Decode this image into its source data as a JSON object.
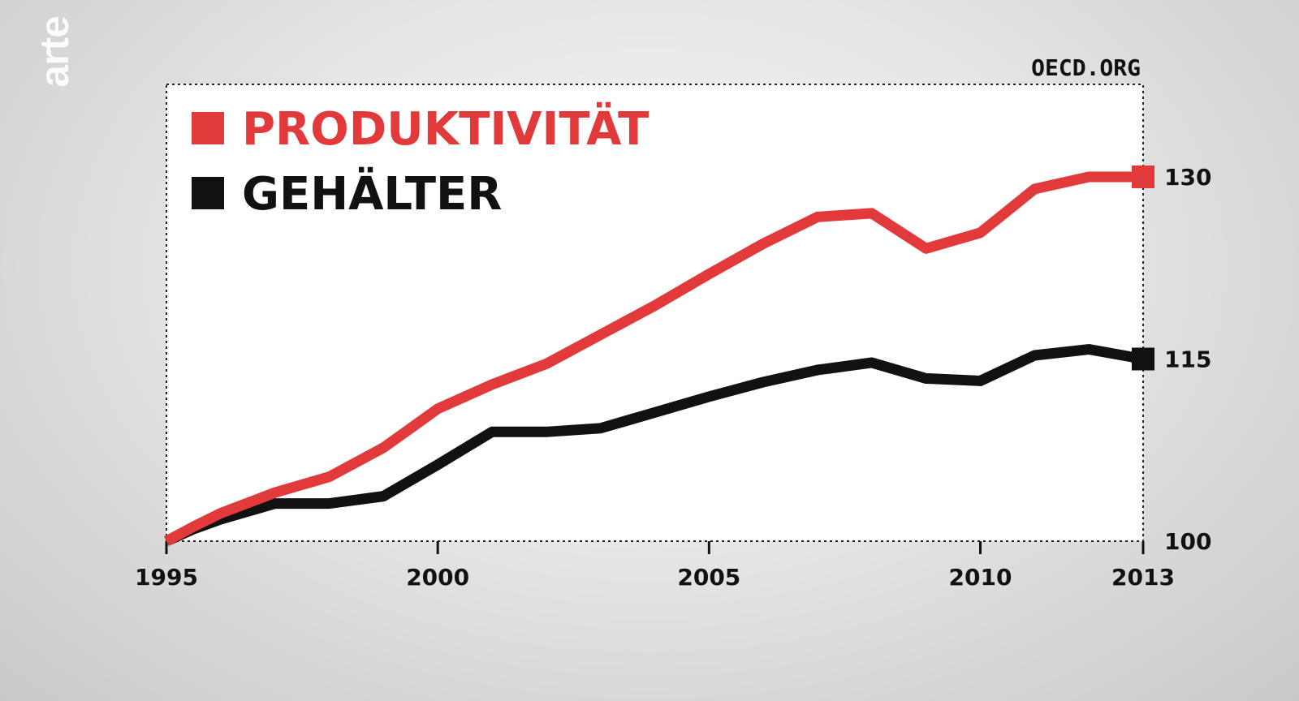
{
  "logo": {
    "text": "arte"
  },
  "source": "OECD.ORG",
  "chart_data": {
    "type": "line",
    "title": "",
    "xlabel": "",
    "ylabel": "",
    "x": [
      1995,
      1995.5,
      1996,
      1997,
      1998,
      1999,
      2000,
      2001,
      2002,
      2003,
      2004,
      2005,
      2006,
      2007,
      2008,
      2009,
      2010,
      2011,
      2012,
      2013
    ],
    "series": [
      {
        "name": "PRODUKTIVITÄT",
        "color": "#e23a3a",
        "values": [
          100,
          101.2,
          102.3,
          104.0,
          105.3,
          107.7,
          110.9,
          112.9,
          114.6,
          117.0,
          119.4,
          122.0,
          124.5,
          126.7,
          127.0,
          124.1,
          125.4,
          129.0,
          130.0,
          130.0
        ]
      },
      {
        "name": "GEHÄLTER",
        "color": "#111111",
        "values": [
          100,
          101.0,
          101.8,
          103.1,
          103.1,
          103.7,
          106.3,
          109.0,
          109.0,
          109.3,
          110.6,
          111.9,
          113.1,
          114.1,
          114.7,
          113.4,
          113.2,
          115.3,
          115.8,
          115.0
        ]
      }
    ],
    "x_ticks": [
      "1995",
      "2000",
      "2005",
      "2010",
      "2013"
    ],
    "y_ticks": [
      "100",
      "115",
      "130"
    ],
    "xlim": [
      1995,
      2013
    ],
    "ylim": [
      100,
      130
    ],
    "y_axis_side": "right",
    "legend_placement": "top-left",
    "grid": false
  }
}
